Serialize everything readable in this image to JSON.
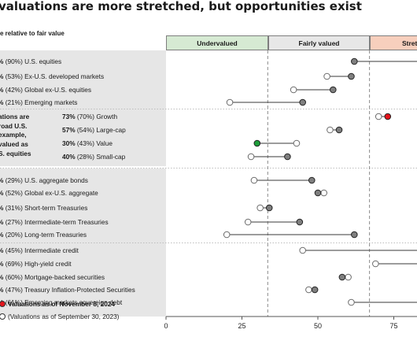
{
  "title": "valuations are more stretched, but opportunities exist",
  "subtitle": "e relative to fair value",
  "chart_data": {
    "type": "dot-range",
    "xlim": [
      0,
      82
    ],
    "xticks": [
      0,
      25,
      50,
      75
    ],
    "zones": [
      {
        "label": "Undervalued",
        "from": 0,
        "to": 33.5,
        "color": "#d6ead3"
      },
      {
        "label": "Fairly valued",
        "from": 33.5,
        "to": 67,
        "color": "#e7e7e7"
      },
      {
        "label": "Stretc",
        "from": 67,
        "to": 82,
        "color": "#f7cfbd"
      }
    ],
    "groups": [
      {
        "rows": [
          {
            "label": "(90%) U.S. equities",
            "prefix": "%",
            "current": 62,
            "previous": null
          },
          {
            "label": "(53%) Ex-U.S. developed markets",
            "prefix": "%",
            "current": 61,
            "previous": 53
          },
          {
            "label": "(42%) Global ex-U.S. equities",
            "prefix": "%",
            "current": 55,
            "previous": 42
          },
          {
            "label": "(21%) Emerging markets",
            "prefix": "%",
            "current": 45,
            "previous": 21
          }
        ]
      },
      {
        "side_text": [
          "ations are",
          "road U.S.",
          "example,",
          "valued as",
          "S. equities"
        ],
        "rows": [
          {
            "label": "(70%) Growth",
            "prefix": "73%",
            "current": 73,
            "previous": 70,
            "highlight": "red"
          },
          {
            "label": "(54%) Large-cap",
            "prefix": "57%",
            "current": 57,
            "previous": 54
          },
          {
            "label": "(43%) Value",
            "prefix": "30%",
            "current": 30,
            "previous": 43,
            "highlight": "green"
          },
          {
            "label": "(28%) Small-cap",
            "prefix": "40%",
            "current": 40,
            "previous": 28
          }
        ]
      },
      {
        "rows": [
          {
            "label": "(29%) U.S. aggregate bonds",
            "prefix": "%",
            "current": 48,
            "previous": 29
          },
          {
            "label": "(52%) Global ex-U.S. aggregate",
            "prefix": "%",
            "current": 50,
            "previous": 52
          },
          {
            "label": "(31%) Short-term Treasuries",
            "prefix": "%",
            "current": 34,
            "previous": 31
          },
          {
            "label": "(27%) Intermediate-term Treasuries",
            "prefix": "%",
            "current": 44,
            "previous": 27
          },
          {
            "label": "(20%) Long-term Treasuries",
            "prefix": "%",
            "current": 62,
            "previous": 20
          }
        ]
      },
      {
        "rows": [
          {
            "label": "(45%) Intermediate credit",
            "prefix": "%",
            "current": null,
            "previous": 45
          },
          {
            "label": "(69%) High-yield credit",
            "prefix": "%",
            "current": null,
            "previous": 69
          },
          {
            "label": "(60%) Mortgage-backed securities",
            "prefix": "%",
            "current": 58,
            "previous": 60
          },
          {
            "label": "(47%) Treasury Inflation-Protected Securities",
            "prefix": "%",
            "current": 49,
            "previous": 47
          },
          {
            "label": "(61%) Emerging markets sovereign debt",
            "prefix": "%",
            "current": null,
            "previous": 61
          }
        ]
      }
    ],
    "legend": [
      {
        "label": "Valuations as of November 8, 2024",
        "marker": "filled-red"
      },
      {
        "label": "(Valuations as of September 30, 2023)",
        "marker": "hollow"
      }
    ],
    "colors": {
      "current": "#7f7f7f",
      "previous": "#ffffff",
      "red": "#e4141b",
      "green": "#1e9d3a",
      "line": "#3a3a3a"
    }
  }
}
